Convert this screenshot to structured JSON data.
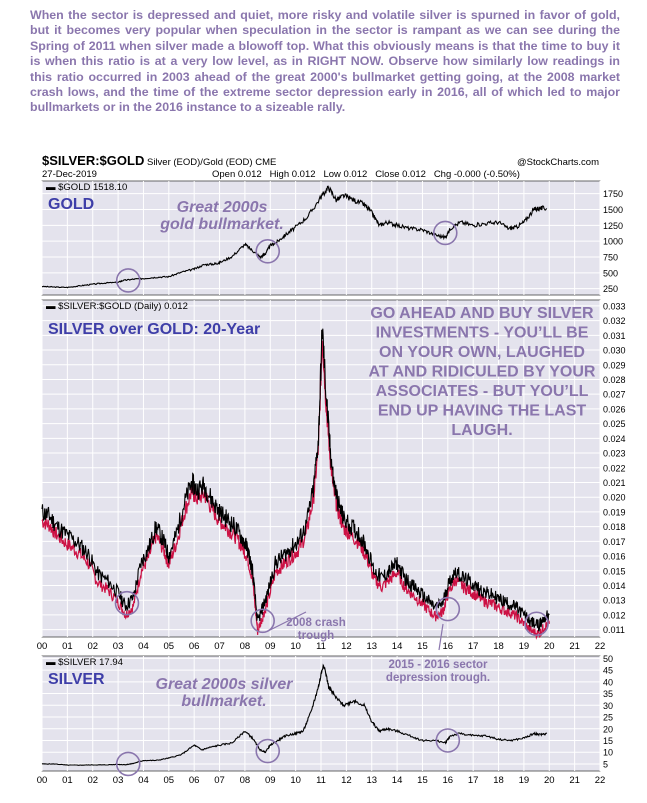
{
  "commentary": "When the sector is depressed and quiet, more risky and volatile silver is spurned in favor of gold, but it becomes very popular when speculation in the sector is rampant as we can see during the Spring of 2011 when silver made a blowoff top. What this obviously means is that the time to buy it is when this ratio is at a very low level, as in RIGHT NOW. Observe how similarly low readings in this ratio occurred in 2003 ahead of the great 2000's bullmarket getting going, at the 2008 market crash lows, and the time of the extreme sector depression early in 2016, all of which led to major bullmarkets or in the 2016 instance to a sizeable rally.",
  "header": {
    "symbol": "$SILVER:$GOLD",
    "description": "Silver (EOD)/Gold (EOD) CME",
    "source": "@StockCharts.com",
    "date": "27-Dec-2019",
    "ohlc": "Open 0.012   High 0.012   Low 0.012   Close 0.012   Chg -0.000 (-0.50%)"
  },
  "colors": {
    "panel_bg": "#e4e3ed",
    "grid": "#ffffff",
    "price_line": "#000000",
    "ratio_low_line": "#cc1144",
    "annotation_text": "#8a76ad",
    "panel_title": "#3e3ea8",
    "circle": "#8a76ad"
  },
  "chart_data": [
    {
      "type": "line",
      "legend": "$GOLD 1518.10",
      "panel_label": "GOLD",
      "annotation": [
        "Great 2000s",
        "gold bullmarket."
      ],
      "y_ticks": [
        250,
        500,
        750,
        1000,
        1250,
        1500,
        1750
      ],
      "ylim": [
        150,
        1950
      ],
      "x_ticks": [
        "00",
        "01",
        "02",
        "03",
        "04",
        "05",
        "06",
        "07",
        "08",
        "09",
        "10",
        "11",
        "12",
        "13",
        "14",
        "15",
        "16",
        "17",
        "18",
        "19",
        "20",
        "21",
        "22"
      ],
      "x": [
        0,
        0.5,
        1,
        1.5,
        2,
        2.5,
        3,
        3.2,
        3.6,
        4,
        4.5,
        5,
        5.5,
        6,
        6.4,
        6.8,
        7,
        7.5,
        8,
        8.3,
        8.6,
        8.8,
        9,
        9.3,
        9.6,
        10,
        10.5,
        11,
        11.3,
        11.6,
        11.9,
        12.3,
        12.7,
        13,
        13.3,
        13.6,
        14,
        14.5,
        15,
        15.5,
        15.9,
        16.1,
        16.5,
        17,
        17.5,
        18,
        18.4,
        18.7,
        19,
        19.4,
        19.6,
        19.9
      ],
      "y": [
        285,
        275,
        270,
        295,
        320,
        340,
        350,
        380,
        400,
        410,
        430,
        440,
        510,
        560,
        630,
        640,
        660,
        760,
        950,
        850,
        750,
        800,
        930,
        1000,
        1100,
        1220,
        1400,
        1700,
        1850,
        1650,
        1720,
        1650,
        1580,
        1450,
        1250,
        1300,
        1250,
        1200,
        1180,
        1100,
        1060,
        1200,
        1300,
        1250,
        1280,
        1300,
        1200,
        1220,
        1300,
        1500,
        1520,
        1518
      ]
    },
    {
      "type": "line",
      "legend": "$SILVER:$GOLD (Daily) 0.012",
      "panel_label": "SILVER over GOLD: 20-Year",
      "annotation": [
        "GO AHEAD AND BUY SILVER",
        "INVESTMENTS - YOU’LL BE",
        "ON YOUR OWN, LAUGHED",
        "AT AND RIDICULED BY YOUR",
        "ASSOCIATES - BUT YOU’LL",
        "END UP HAVING THE LAST",
        "LAUGH."
      ],
      "annotation_2008": [
        "2008 crash",
        "trough"
      ],
      "annotation_2016": [
        "2015 - 2016 sector",
        "depression trough."
      ],
      "y_ticks": [
        0.011,
        0.012,
        0.013,
        0.014,
        0.015,
        0.016,
        0.017,
        0.018,
        0.019,
        0.02,
        0.021,
        0.022,
        0.023,
        0.024,
        0.025,
        0.026,
        0.027,
        0.028,
        0.029,
        0.03,
        0.031,
        0.032,
        0.033
      ],
      "ylim": [
        0.0105,
        0.0334
      ],
      "x_ticks": [
        "00",
        "01",
        "02",
        "03",
        "04",
        "05",
        "06",
        "07",
        "08",
        "09",
        "10",
        "11",
        "12",
        "13",
        "14",
        "15",
        "16",
        "17",
        "18",
        "19",
        "20",
        "21",
        "22"
      ],
      "x": [
        0,
        0.3,
        0.6,
        1,
        1.4,
        1.8,
        2.2,
        2.6,
        3,
        3.3,
        3.6,
        3.9,
        4.2,
        4.5,
        4.8,
        5,
        5.3,
        5.6,
        5.9,
        6.1,
        6.4,
        6.7,
        7,
        7.3,
        7.6,
        7.9,
        8.1,
        8.3,
        8.5,
        8.7,
        8.9,
        9.2,
        9.5,
        9.8,
        10.1,
        10.4,
        10.7,
        10.9,
        11.05,
        11.2,
        11.35,
        11.5,
        11.7,
        11.9,
        12.2,
        12.5,
        12.8,
        13.1,
        13.4,
        13.7,
        14,
        14.3,
        14.6,
        14.9,
        15.2,
        15.5,
        15.8,
        16,
        16.3,
        16.6,
        16.9,
        17.2,
        17.5,
        17.8,
        18.1,
        18.4,
        18.7,
        19,
        19.3,
        19.6,
        19.8,
        20
      ],
      "y": [
        0.019,
        0.0187,
        0.018,
        0.0174,
        0.0169,
        0.0162,
        0.0148,
        0.0143,
        0.0135,
        0.0126,
        0.0132,
        0.0155,
        0.0165,
        0.018,
        0.017,
        0.016,
        0.0175,
        0.0195,
        0.021,
        0.0205,
        0.0208,
        0.0198,
        0.019,
        0.0185,
        0.018,
        0.0172,
        0.0165,
        0.015,
        0.0115,
        0.0125,
        0.0135,
        0.0155,
        0.016,
        0.0165,
        0.017,
        0.018,
        0.0205,
        0.024,
        0.0315,
        0.027,
        0.0235,
        0.021,
        0.0195,
        0.0185,
        0.018,
        0.0175,
        0.0165,
        0.015,
        0.0145,
        0.015,
        0.0155,
        0.0145,
        0.014,
        0.0135,
        0.013,
        0.0125,
        0.0128,
        0.014,
        0.015,
        0.0145,
        0.0142,
        0.0138,
        0.0135,
        0.0133,
        0.013,
        0.0128,
        0.0125,
        0.012,
        0.0115,
        0.0113,
        0.0118,
        0.012
      ]
    },
    {
      "type": "line",
      "legend": "$SILVER 17.94",
      "panel_label": "SILVER",
      "annotation": [
        "Great 2000s silver",
        "bullmarket."
      ],
      "y_ticks": [
        5,
        10,
        15,
        20,
        25,
        30,
        35,
        40,
        45,
        50
      ],
      "ylim": [
        2,
        51
      ],
      "x_ticks": [
        "00",
        "01",
        "02",
        "03",
        "04",
        "05",
        "06",
        "07",
        "08",
        "09",
        "10",
        "11",
        "12",
        "13",
        "14",
        "15",
        "16",
        "17",
        "18",
        "19",
        "20",
        "21",
        "22"
      ],
      "x": [
        0,
        0.5,
        1,
        1.5,
        2,
        2.5,
        3,
        3.3,
        3.6,
        4,
        4.5,
        5,
        5.5,
        6,
        6.3,
        6.6,
        7,
        7.5,
        8,
        8.3,
        8.6,
        8.8,
        9,
        9.3,
        9.6,
        10,
        10.3,
        10.6,
        10.9,
        11.1,
        11.3,
        11.6,
        11.9,
        12.3,
        12.7,
        13,
        13.3,
        13.6,
        14,
        14.5,
        15,
        15.5,
        15.9,
        16.1,
        16.5,
        17,
        17.5,
        18,
        18.5,
        19,
        19.4,
        19.6,
        19.9
      ],
      "y": [
        5,
        5,
        4.5,
        4.5,
        4.6,
        4.6,
        4.8,
        4.7,
        5.2,
        6.5,
        6.5,
        7.5,
        9,
        13,
        11,
        12,
        13,
        14,
        19,
        16,
        11,
        10,
        13,
        15,
        17,
        18,
        19,
        27,
        38,
        48,
        38,
        33,
        30,
        32,
        30,
        23,
        19,
        20,
        19,
        17,
        15,
        15,
        14,
        17,
        18,
        17,
        17,
        15.5,
        15,
        16,
        18,
        17.5,
        17.9
      ]
    }
  ]
}
